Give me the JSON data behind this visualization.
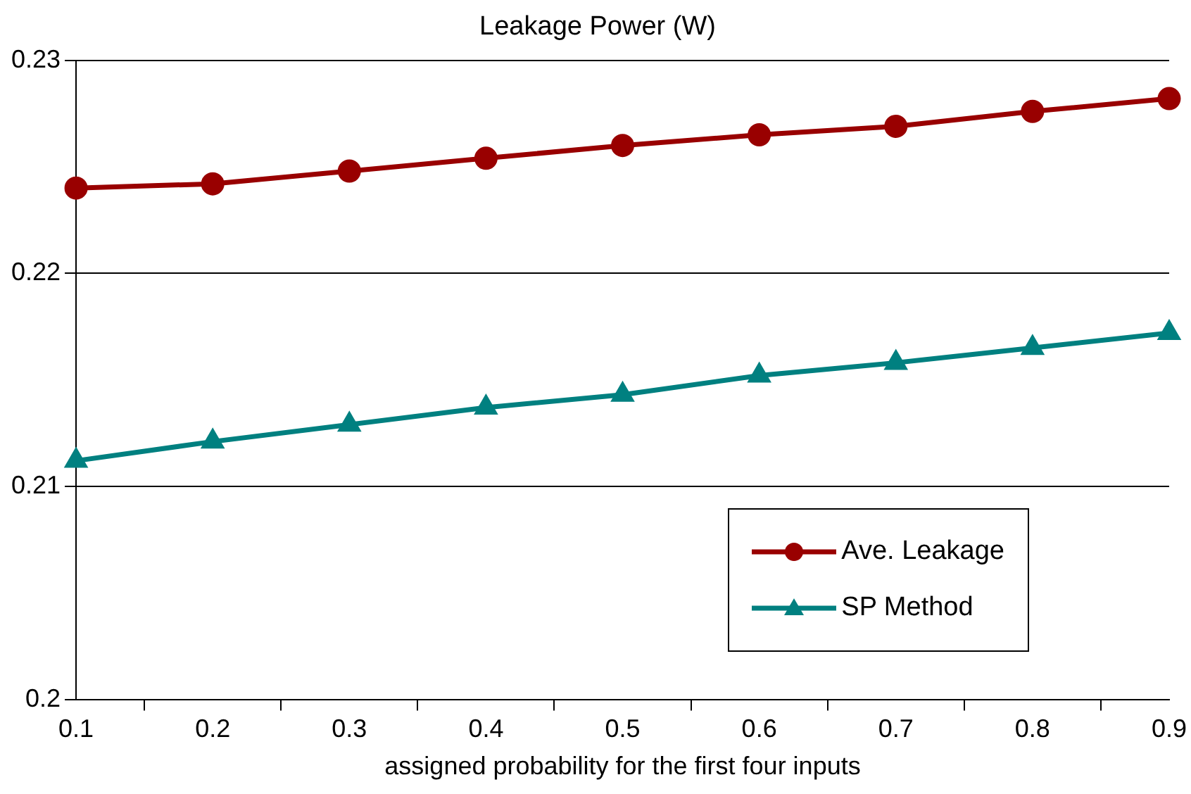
{
  "chart_data": {
    "type": "line",
    "title": "Leakage Power (W)",
    "xlabel": "assigned probability for the first four inputs",
    "categories": [
      "0.1",
      "0.2",
      "0.3",
      "0.4",
      "0.5",
      "0.6",
      "0.7",
      "0.8",
      "0.9"
    ],
    "series": [
      {
        "name": "Ave. Leakage",
        "color": "#990000",
        "marker": "circle",
        "values": [
          0.224,
          0.2242,
          0.2248,
          0.2254,
          0.226,
          0.2265,
          0.2269,
          0.2276,
          0.2282
        ]
      },
      {
        "name": "SP Method",
        "color": "#008080",
        "marker": "triangle",
        "values": [
          0.2112,
          0.2121,
          0.2129,
          0.2137,
          0.2143,
          0.2152,
          0.2158,
          0.2165,
          0.2172
        ]
      }
    ],
    "ylim": [
      0.2,
      0.23
    ],
    "yticks": [
      0.2,
      0.21,
      0.22,
      0.23
    ],
    "grid": "y",
    "legend": "bottom right"
  }
}
